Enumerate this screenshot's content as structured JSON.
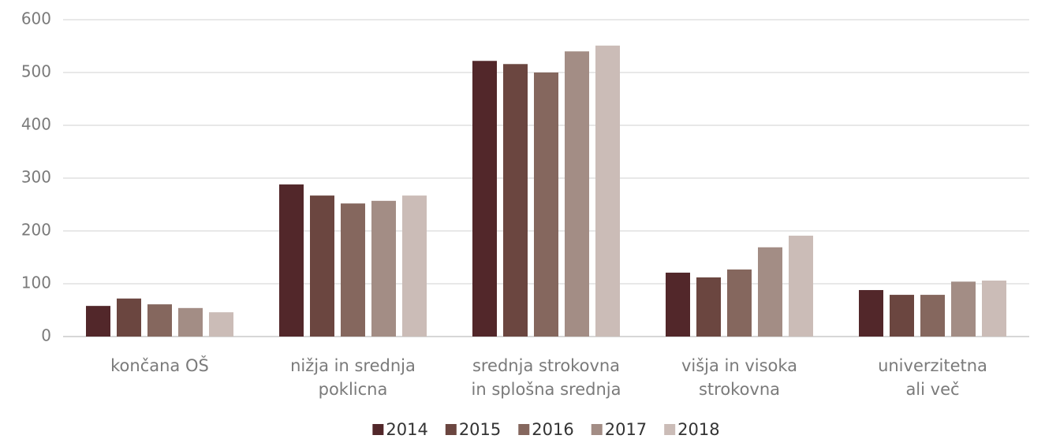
{
  "chart_data": {
    "type": "bar",
    "categories": [
      "končana OŠ",
      "nižja in srednja\npoklicna",
      "srednja strokovna\nin splošna srednja",
      "višja in visoka\nstrokovna",
      "univerzitetna\nali več"
    ],
    "series": [
      {
        "name": "2014",
        "color": "#52272a",
        "values": [
          58,
          288,
          522,
          121,
          88
        ]
      },
      {
        "name": "2015",
        "color": "#6b4640",
        "values": [
          72,
          267,
          516,
          112,
          79
        ]
      },
      {
        "name": "2016",
        "color": "#85675e",
        "values": [
          61,
          252,
          500,
          127,
          79
        ]
      },
      {
        "name": "2017",
        "color": "#a38d85",
        "values": [
          54,
          257,
          540,
          169,
          104
        ]
      },
      {
        "name": "2018",
        "color": "#cbbcb7",
        "values": [
          46,
          267,
          551,
          191,
          106
        ]
      }
    ],
    "ylim": [
      0,
      600
    ],
    "yticks": [
      0,
      100,
      200,
      300,
      400,
      500,
      600
    ],
    "grid": true,
    "legend": "bottom"
  }
}
